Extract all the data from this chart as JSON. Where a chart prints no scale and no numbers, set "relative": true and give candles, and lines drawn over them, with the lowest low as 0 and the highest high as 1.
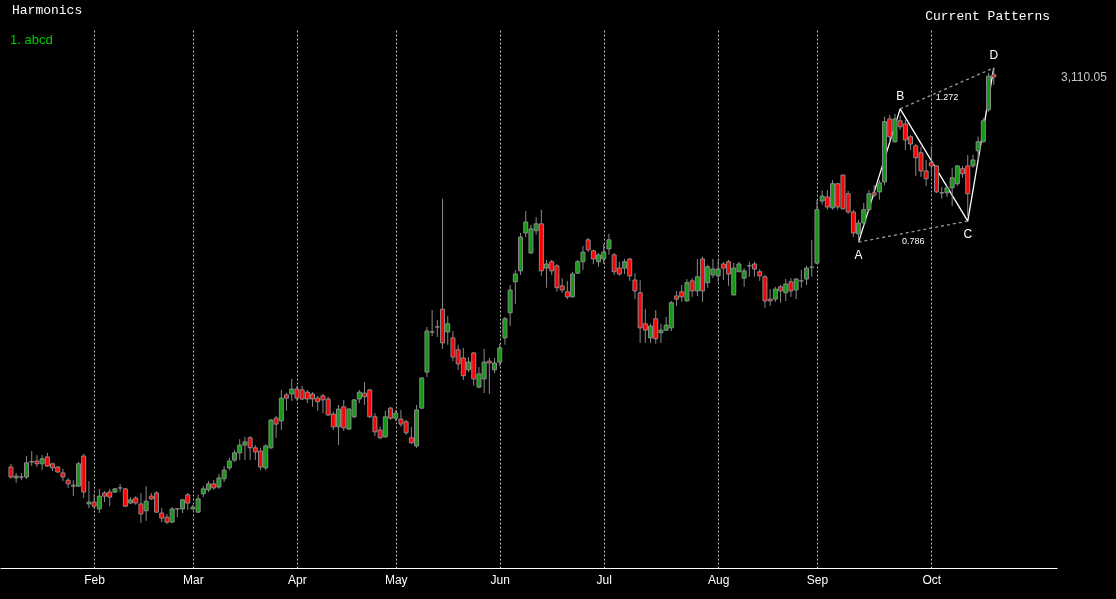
{
  "chart_data": {
    "type": "candlestick",
    "title": "Harmonics",
    "relative": true,
    "grid": "x",
    "annotations": [
      "1. abcd",
      "Current Patterns",
      "3,110.05",
      "A",
      "B",
      "C",
      "D",
      "0.786",
      "1.272"
    ],
    "categories": [
      null,
      null,
      null,
      null,
      null,
      null,
      null,
      null,
      null,
      null,
      null,
      null,
      null,
      null,
      null,
      null,
      "Feb",
      null,
      null,
      null,
      null,
      null,
      null,
      null,
      null,
      null,
      null,
      null,
      null,
      null,
      null,
      null,
      null,
      null,
      null,
      "Mar",
      null,
      null,
      null,
      null,
      null,
      null,
      null,
      null,
      null,
      null,
      null,
      null,
      null,
      null,
      null,
      null,
      null,
      null,
      null,
      "Apr",
      null,
      null,
      null,
      null,
      null,
      null,
      null,
      null,
      null,
      null,
      null,
      null,
      null,
      null,
      null,
      null,
      null,
      null,
      "May",
      null,
      null,
      null,
      null,
      null,
      null,
      null,
      null,
      null,
      null,
      null,
      null,
      null,
      null,
      null,
      null,
      null,
      null,
      null,
      "Jun",
      null,
      null,
      null,
      null,
      null,
      null,
      null,
      null,
      null,
      null,
      null,
      null,
      null,
      null,
      null,
      null,
      null,
      null,
      null,
      "Jul",
      null,
      null,
      null,
      null,
      null,
      null,
      null,
      null,
      null,
      null,
      null,
      null,
      null,
      null,
      null,
      null,
      null,
      null,
      null,
      null,
      null,
      "Aug",
      null,
      null,
      null,
      null,
      null,
      null,
      null,
      null,
      null,
      null,
      null,
      null,
      null,
      null,
      null,
      null,
      null,
      null,
      "Sep",
      null,
      null,
      null,
      null,
      null,
      null,
      null,
      null,
      null,
      null,
      null,
      null,
      null,
      null,
      null,
      null,
      null,
      null,
      null,
      null,
      null,
      "Oct",
      null,
      null,
      null,
      null,
      null,
      null,
      null,
      null,
      null,
      null,
      null,
      null
    ],
    "ohlc": [
      [
        0.125,
        0.132,
        0.099,
        0.103
      ],
      [
        0.101,
        0.112,
        0.09,
        0.105
      ],
      [
        0.103,
        0.112,
        0.096,
        0.103
      ],
      [
        0.103,
        0.149,
        0.099,
        0.134
      ],
      [
        0.136,
        0.16,
        0.127,
        0.137
      ],
      [
        0.138,
        0.151,
        0.125,
        0.132
      ],
      [
        0.132,
        0.151,
        0.118,
        0.143
      ],
      [
        0.147,
        0.156,
        0.125,
        0.127
      ],
      [
        0.132,
        0.134,
        0.116,
        0.123
      ],
      [
        0.125,
        0.127,
        0.112,
        0.114
      ],
      [
        0.112,
        0.121,
        0.094,
        0.103
      ],
      [
        0.096,
        0.101,
        0.079,
        0.088
      ],
      [
        0.083,
        0.096,
        0.061,
        0.085
      ],
      [
        0.083,
        0.136,
        0.081,
        0.132
      ],
      [
        0.149,
        0.154,
        0.057,
        0.07
      ],
      [
        0.044,
        0.094,
        0.035,
        0.048
      ],
      [
        0.048,
        0.066,
        0.033,
        0.039
      ],
      [
        0.033,
        0.077,
        0.024,
        0.061
      ],
      [
        0.068,
        0.072,
        0.048,
        0.061
      ],
      [
        0.07,
        0.077,
        0.039,
        0.059
      ],
      [
        0.07,
        0.079,
        0.068,
        0.077
      ],
      [
        0.079,
        0.088,
        0.07,
        0.079
      ],
      [
        0.077,
        0.079,
        0.037,
        0.039
      ],
      [
        0.046,
        0.059,
        0.044,
        0.053
      ],
      [
        0.057,
        0.061,
        0.042,
        0.046
      ],
      [
        0.044,
        0.068,
        0.002,
        0.022
      ],
      [
        0.029,
        0.083,
        0.007,
        0.05
      ],
      [
        0.061,
        0.068,
        0.053,
        0.055
      ],
      [
        0.068,
        0.072,
        0.024,
        0.026
      ],
      [
        0.024,
        0.035,
        0.004,
        0.013
      ],
      [
        0.015,
        0.022,
        0,
        0.004
      ],
      [
        0.004,
        0.037,
        0.002,
        0.033
      ],
      [
        0.033,
        0.035,
        0.015,
        0.033
      ],
      [
        0.033,
        0.055,
        0.024,
        0.053
      ],
      [
        0.064,
        0.068,
        0.031,
        0.046
      ],
      [
        0.033,
        0.042,
        0.031,
        0.037
      ],
      [
        0.026,
        0.064,
        0.024,
        0.055
      ],
      [
        0.066,
        0.083,
        0.059,
        0.077
      ],
      [
        0.075,
        0.094,
        0.07,
        0.088
      ],
      [
        0.088,
        0.096,
        0.075,
        0.079
      ],
      [
        0.081,
        0.11,
        0.077,
        0.101
      ],
      [
        0.099,
        0.127,
        0.092,
        0.118
      ],
      [
        0.123,
        0.145,
        0.118,
        0.138
      ],
      [
        0.14,
        0.162,
        0.136,
        0.156
      ],
      [
        0.156,
        0.186,
        0.14,
        0.173
      ],
      [
        0.173,
        0.191,
        0.14,
        0.18
      ],
      [
        0.189,
        0.193,
        0.14,
        0.167
      ],
      [
        0.167,
        0.173,
        0.14,
        0.158
      ],
      [
        0.16,
        0.167,
        0.118,
        0.125
      ],
      [
        0.123,
        0.175,
        0.118,
        0.171
      ],
      [
        0.167,
        0.23,
        0.164,
        0.228
      ],
      [
        0.232,
        0.237,
        0.189,
        0.219
      ],
      [
        0.226,
        0.294,
        0.206,
        0.276
      ],
      [
        0.283,
        0.287,
        0.248,
        0.276
      ],
      [
        0.285,
        0.318,
        0.27,
        0.296
      ],
      [
        0.296,
        0.303,
        0.27,
        0.276
      ],
      [
        0.294,
        0.303,
        0.272,
        0.274
      ],
      [
        0.289,
        0.294,
        0.265,
        0.274
      ],
      [
        0.285,
        0.289,
        0.257,
        0.274
      ],
      [
        0.276,
        0.281,
        0.248,
        0.268
      ],
      [
        0.281,
        0.285,
        0.243,
        0.272
      ],
      [
        0.274,
        0.279,
        0.237,
        0.239
      ],
      [
        0.241,
        0.246,
        0.206,
        0.213
      ],
      [
        0.213,
        0.261,
        0.173,
        0.252
      ],
      [
        0.257,
        0.272,
        0.204,
        0.211
      ],
      [
        0.208,
        0.254,
        0.206,
        0.252
      ],
      [
        0.235,
        0.274,
        0.232,
        0.272
      ],
      [
        0.274,
        0.294,
        0.265,
        0.289
      ],
      [
        0.287,
        0.311,
        0.261,
        0.279
      ],
      [
        0.294,
        0.296,
        0.232,
        0.235
      ],
      [
        0.235,
        0.243,
        0.193,
        0.202
      ],
      [
        0.206,
        0.213,
        0.186,
        0.189
      ],
      [
        0.191,
        0.248,
        0.189,
        0.235
      ],
      [
        0.254,
        0.257,
        0.228,
        0.232
      ],
      [
        0.232,
        0.25,
        0.226,
        0.243
      ],
      [
        0.23,
        0.25,
        0.213,
        0.219
      ],
      [
        0.224,
        0.228,
        0.195,
        0.2
      ],
      [
        0.189,
        0.213,
        0.175,
        0.178
      ],
      [
        0.171,
        0.261,
        0.167,
        0.25
      ],
      [
        0.254,
        0.322,
        0.252,
        0.32
      ],
      [
        0.333,
        0.432,
        0.322,
        0.423
      ],
      [
        0.421,
        0.469,
        0.412,
        0.421
      ],
      [
        0.432,
        0.447,
        0.41,
        0.432
      ],
      [
        0.471,
        0.713,
        0.384,
        0.397
      ],
      [
        0.421,
        0.456,
        0.393,
        0.439
      ],
      [
        0.408,
        0.423,
        0.357,
        0.366
      ],
      [
        0.382,
        0.393,
        0.338,
        0.351
      ],
      [
        0.364,
        0.386,
        0.316,
        0.325
      ],
      [
        0.338,
        0.366,
        0.333,
        0.355
      ],
      [
        0.375,
        0.377,
        0.303,
        0.318
      ],
      [
        0.3,
        0.344,
        0.298,
        0.329
      ],
      [
        0.318,
        0.384,
        0.287,
        0.355
      ],
      [
        0.357,
        0.364,
        0.285,
        0.353
      ],
      [
        0.338,
        0.364,
        0.331,
        0.353
      ],
      [
        0.355,
        0.395,
        0.346,
        0.386
      ],
      [
        0.408,
        0.454,
        0.393,
        0.45
      ],
      [
        0.463,
        0.524,
        0.434,
        0.513
      ],
      [
        0.531,
        0.557,
        0.482,
        0.548
      ],
      [
        0.555,
        0.638,
        0.546,
        0.629
      ],
      [
        0.638,
        0.686,
        0.629,
        0.662
      ],
      [
        0.594,
        0.656,
        0.592,
        0.647
      ],
      [
        0.643,
        0.673,
        0.634,
        0.658
      ],
      [
        0.658,
        0.689,
        0.544,
        0.555
      ],
      [
        0.561,
        0.579,
        0.518,
        0.57
      ],
      [
        0.575,
        0.579,
        0.546,
        0.555
      ],
      [
        0.566,
        0.57,
        0.509,
        0.518
      ],
      [
        0.522,
        0.539,
        0.507,
        0.513
      ],
      [
        0.509,
        0.533,
        0.493,
        0.498
      ],
      [
        0.498,
        0.553,
        0.496,
        0.548
      ],
      [
        0.55,
        0.579,
        0.548,
        0.575
      ],
      [
        0.575,
        0.61,
        0.557,
        0.596
      ],
      [
        0.623,
        0.627,
        0.596,
        0.601
      ],
      [
        0.599,
        0.601,
        0.57,
        0.581
      ],
      [
        0.575,
        0.594,
        0.564,
        0.59
      ],
      [
        0.581,
        0.614,
        0.57,
        0.596
      ],
      [
        0.603,
        0.636,
        0.59,
        0.623
      ],
      [
        0.59,
        0.594,
        0.546,
        0.553
      ],
      [
        0.561,
        0.575,
        0.544,
        0.548
      ],
      [
        0.561,
        0.581,
        0.548,
        0.575
      ],
      [
        0.581,
        0.583,
        0.533,
        0.544
      ],
      [
        0.535,
        0.55,
        0.493,
        0.511
      ],
      [
        0.507,
        0.535,
        0.397,
        0.43
      ],
      [
        0.439,
        0.471,
        0.397,
        0.425
      ],
      [
        0.408,
        0.439,
        0.397,
        0.434
      ],
      [
        0.45,
        0.469,
        0.395,
        0.406
      ],
      [
        0.419,
        0.439,
        0.397,
        0.425
      ],
      [
        0.425,
        0.454,
        0.423,
        0.436
      ],
      [
        0.43,
        0.489,
        0.423,
        0.485
      ],
      [
        0.5,
        0.511,
        0.478,
        0.493
      ],
      [
        0.509,
        0.524,
        0.487,
        0.498
      ],
      [
        0.489,
        0.537,
        0.487,
        0.529
      ],
      [
        0.533,
        0.539,
        0.498,
        0.511
      ],
      [
        0.511,
        0.581,
        0.5,
        0.542
      ],
      [
        0.581,
        0.586,
        0.487,
        0.511
      ],
      [
        0.529,
        0.568,
        0.518,
        0.564
      ],
      [
        0.546,
        0.581,
        0.539,
        0.559
      ],
      [
        0.544,
        0.579,
        0.531,
        0.559
      ],
      [
        0.57,
        0.575,
        0.535,
        0.561
      ],
      [
        0.575,
        0.579,
        0.522,
        0.548
      ],
      [
        0.502,
        0.572,
        0.502,
        0.561
      ],
      [
        0.553,
        0.575,
        0.553,
        0.57
      ],
      [
        0.539,
        0.561,
        0.52,
        0.555
      ],
      [
        0.566,
        0.575,
        0.542,
        0.566
      ],
      [
        0.57,
        0.575,
        0.542,
        0.559
      ],
      [
        0.553,
        0.559,
        0.533,
        0.544
      ],
      [
        0.542,
        0.546,
        0.474,
        0.489
      ],
      [
        0.493,
        0.515,
        0.478,
        0.489
      ],
      [
        0.493,
        0.52,
        0.487,
        0.515
      ],
      [
        0.52,
        0.524,
        0.485,
        0.511
      ],
      [
        0.507,
        0.537,
        0.489,
        0.526
      ],
      [
        0.531,
        0.539,
        0.498,
        0.511
      ],
      [
        0.513,
        0.539,
        0.493,
        0.537
      ],
      [
        0.533,
        0.557,
        0.518,
        0.533
      ],
      [
        0.537,
        0.566,
        0.524,
        0.561
      ],
      [
        0.563,
        0.623,
        0.542,
        0.563
      ],
      [
        0.572,
        0.711,
        0.57,
        0.689
      ],
      [
        0.708,
        0.732,
        0.7,
        0.719
      ],
      [
        0.717,
        0.732,
        0.689,
        0.695
      ],
      [
        0.693,
        0.754,
        0.689,
        0.746
      ],
      [
        0.746,
        0.748,
        0.689,
        0.695
      ],
      [
        0.765,
        0.765,
        0.689,
        0.691
      ],
      [
        0.724,
        0.73,
        0.68,
        0.684
      ],
      [
        0.684,
        0.689,
        0.629,
        0.638
      ],
      [
        0.636,
        0.667,
        0.618,
        0.66
      ],
      [
        0.66,
        0.704,
        0.654,
        0.689
      ],
      [
        0.689,
        0.732,
        0.686,
        0.724
      ],
      [
        0.726,
        0.743,
        0.717,
        0.721
      ],
      [
        0.728,
        0.754,
        0.711,
        0.748
      ],
      [
        0.75,
        0.893,
        0.743,
        0.882
      ],
      [
        0.888,
        0.897,
        0.836,
        0.849
      ],
      [
        0.838,
        0.899,
        0.836,
        0.888
      ],
      [
        0.884,
        0.895,
        0.864,
        0.871
      ],
      [
        0.877,
        0.886,
        0.82,
        0.842
      ],
      [
        0.849,
        0.853,
        0.82,
        0.833
      ],
      [
        0.829,
        0.833,
        0.763,
        0.803
      ],
      [
        0.814,
        0.827,
        0.761,
        0.774
      ],
      [
        0.774,
        0.798,
        0.741,
        0.757
      ],
      [
        0.792,
        0.825,
        0.761,
        0.785
      ],
      [
        0.785,
        0.785,
        0.726,
        0.728
      ],
      [
        0.726,
        0.739,
        0.713,
        0.726
      ],
      [
        0.726,
        0.741,
        0.717,
        0.737
      ],
      [
        0.737,
        0.781,
        0.697,
        0.759
      ],
      [
        0.746,
        0.787,
        0.741,
        0.785
      ],
      [
        0.779,
        0.785,
        0.759,
        0.768
      ],
      [
        0.785,
        0.809,
        0.675,
        0.724
      ],
      [
        0.785,
        0.809,
        0.781,
        0.798
      ],
      [
        0.818,
        0.849,
        0.798,
        0.838
      ],
      [
        0.838,
        0.89,
        0.836,
        0.884
      ],
      [
        0.908,
        0.989,
        0.904,
        0.982
      ],
      [
        0.985,
        1.0,
        0.963,
        0.98
      ]
    ],
    "series": [
      {
        "type": "line",
        "color": "#ffffff",
        "values": [
          null,
          null,
          null,
          null,
          null,
          null,
          null,
          null,
          null,
          null,
          null,
          null,
          null,
          null,
          null,
          null,
          null,
          null,
          null,
          null,
          null,
          null,
          null,
          null,
          null,
          null,
          null,
          null,
          null,
          null,
          null,
          null,
          null,
          null,
          null,
          null,
          null,
          null,
          null,
          null,
          null,
          null,
          null,
          null,
          null,
          null,
          null,
          null,
          null,
          null,
          null,
          null,
          null,
          null,
          null,
          null,
          null,
          null,
          null,
          null,
          null,
          null,
          null,
          null,
          null,
          null,
          null,
          null,
          null,
          null,
          null,
          null,
          null,
          null,
          null,
          null,
          null,
          null,
          null,
          null,
          null,
          null,
          null,
          null,
          null,
          null,
          null,
          null,
          null,
          null,
          null,
          null,
          null,
          null,
          null,
          null,
          null,
          null,
          null,
          null,
          null,
          null,
          null,
          null,
          null,
          null,
          null,
          null,
          null,
          null,
          null,
          null,
          null,
          null,
          null,
          null,
          null,
          null,
          null,
          null,
          null,
          null,
          null,
          null,
          null,
          null,
          null,
          null,
          null,
          null,
          null,
          null,
          null,
          null,
          null,
          null,
          null,
          null,
          null,
          null,
          null,
          null,
          null,
          null,
          null,
          null,
          null,
          null,
          null,
          null,
          null,
          null,
          null,
          null,
          null,
          null,
          null,
          null,
          null,
          null,
          null,
          null,
          null,
          0.618,
          null,
          null,
          null,
          null,
          null,
          null,
          null,
          0.91,
          null,
          null,
          null,
          null,
          null,
          null,
          null,
          null,
          null,
          null,
          null,
          null,
          0.664,
          null,
          null,
          null,
          null,
          1.0
        ]
      },
      {
        "type": "line",
        "color": "#9a9a9a",
        "line_style": "dashed",
        "values": [
          null,
          null,
          null,
          null,
          null,
          null,
          null,
          null,
          null,
          null,
          null,
          null,
          null,
          null,
          null,
          null,
          null,
          null,
          null,
          null,
          null,
          null,
          null,
          null,
          null,
          null,
          null,
          null,
          null,
          null,
          null,
          null,
          null,
          null,
          null,
          null,
          null,
          null,
          null,
          null,
          null,
          null,
          null,
          null,
          null,
          null,
          null,
          null,
          null,
          null,
          null,
          null,
          null,
          null,
          null,
          null,
          null,
          null,
          null,
          null,
          null,
          null,
          null,
          null,
          null,
          null,
          null,
          null,
          null,
          null,
          null,
          null,
          null,
          null,
          null,
          null,
          null,
          null,
          null,
          null,
          null,
          null,
          null,
          null,
          null,
          null,
          null,
          null,
          null,
          null,
          null,
          null,
          null,
          null,
          null,
          null,
          null,
          null,
          null,
          null,
          null,
          null,
          null,
          null,
          null,
          null,
          null,
          null,
          null,
          null,
          null,
          null,
          null,
          null,
          null,
          null,
          null,
          null,
          null,
          null,
          null,
          null,
          null,
          null,
          null,
          null,
          null,
          null,
          null,
          null,
          null,
          null,
          null,
          null,
          null,
          null,
          null,
          null,
          null,
          null,
          null,
          null,
          null,
          null,
          null,
          null,
          null,
          null,
          null,
          null,
          null,
          null,
          null,
          null,
          null,
          null,
          null,
          null,
          null,
          null,
          null,
          null,
          null,
          0.618,
          null,
          null,
          null,
          null,
          null,
          null,
          null,
          null,
          null,
          null,
          null,
          null,
          null,
          null,
          null,
          null,
          null,
          null,
          null,
          null,
          0.664,
          null,
          null,
          null,
          null,
          null
        ]
      },
      {
        "type": "line",
        "color": "#9a9a9a",
        "line_style": "dashed",
        "values": [
          null,
          null,
          null,
          null,
          null,
          null,
          null,
          null,
          null,
          null,
          null,
          null,
          null,
          null,
          null,
          null,
          null,
          null,
          null,
          null,
          null,
          null,
          null,
          null,
          null,
          null,
          null,
          null,
          null,
          null,
          null,
          null,
          null,
          null,
          null,
          null,
          null,
          null,
          null,
          null,
          null,
          null,
          null,
          null,
          null,
          null,
          null,
          null,
          null,
          null,
          null,
          null,
          null,
          null,
          null,
          null,
          null,
          null,
          null,
          null,
          null,
          null,
          null,
          null,
          null,
          null,
          null,
          null,
          null,
          null,
          null,
          null,
          null,
          null,
          null,
          null,
          null,
          null,
          null,
          null,
          null,
          null,
          null,
          null,
          null,
          null,
          null,
          null,
          null,
          null,
          null,
          null,
          null,
          null,
          null,
          null,
          null,
          null,
          null,
          null,
          null,
          null,
          null,
          null,
          null,
          null,
          null,
          null,
          null,
          null,
          null,
          null,
          null,
          null,
          null,
          null,
          null,
          null,
          null,
          null,
          null,
          null,
          null,
          null,
          null,
          null,
          null,
          null,
          null,
          null,
          null,
          null,
          null,
          null,
          null,
          null,
          null,
          null,
          null,
          null,
          null,
          null,
          null,
          null,
          null,
          null,
          null,
          null,
          null,
          null,
          null,
          null,
          null,
          null,
          null,
          null,
          null,
          null,
          null,
          null,
          null,
          null,
          null,
          null,
          null,
          null,
          null,
          null,
          null,
          null,
          null,
          0.91,
          null,
          null,
          null,
          null,
          null,
          null,
          null,
          null,
          null,
          null,
          null,
          null,
          null,
          null,
          null,
          null,
          null,
          1.0
        ]
      }
    ]
  }
}
